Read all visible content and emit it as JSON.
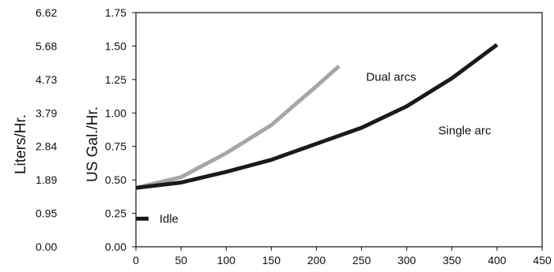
{
  "chart_data": {
    "type": "line",
    "title": "",
    "xlabel": "",
    "ylabel": "US Gal./Hr.",
    "ylabel_secondary": "Liters/Hr.",
    "xlim": [
      0,
      450
    ],
    "ylim": [
      0,
      1.75
    ],
    "x_ticks": [
      "0",
      "50",
      "100",
      "150",
      "200",
      "250",
      "300",
      "350",
      "400",
      "450"
    ],
    "y_ticks": [
      "0.00",
      "0.25",
      "0.50",
      "0.75",
      "1.00",
      "1.25",
      "1.50",
      "1.75"
    ],
    "y2_ticks": [
      "0.00",
      "0.95",
      "1.89",
      "2.84",
      "3.79",
      "4.73",
      "5.68",
      "6.62"
    ],
    "grid": false,
    "series": [
      {
        "name": "Dual arcs",
        "color": "#a6a6a6",
        "x": [
          0,
          50,
          100,
          150,
          200,
          225
        ],
        "y": [
          0.44,
          0.52,
          0.7,
          0.91,
          1.2,
          1.35
        ]
      },
      {
        "name": "Single arc",
        "color": "#1a1a1a",
        "x": [
          0,
          50,
          100,
          150,
          200,
          250,
          300,
          350,
          400
        ],
        "y": [
          0.44,
          0.48,
          0.56,
          0.65,
          0.77,
          0.89,
          1.05,
          1.26,
          1.51
        ]
      }
    ],
    "annotations": [
      {
        "text": "Dual arcs",
        "x": 255,
        "y": 1.27
      },
      {
        "text": "Single arc",
        "x": 335,
        "y": 0.87
      },
      {
        "text": "Idle",
        "x": 26,
        "y": 0.21
      }
    ],
    "idle_marker": {
      "x": [
        0,
        14
      ],
      "y": 0.21,
      "color": "#1a1a1a"
    }
  }
}
